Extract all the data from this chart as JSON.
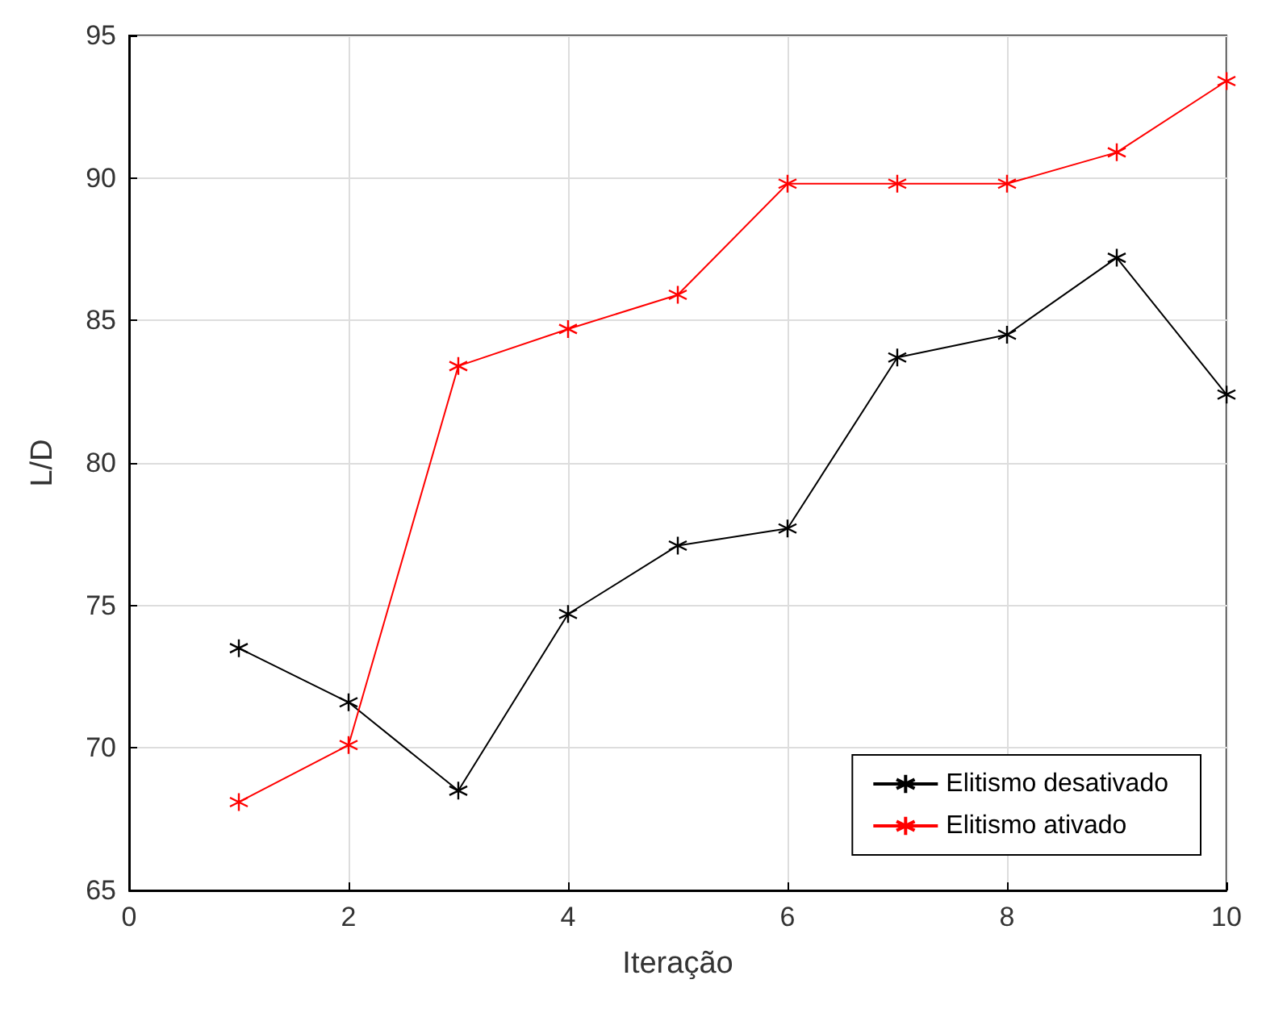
{
  "chart_data": {
    "type": "line",
    "xlabel": "Iteração",
    "ylabel": "L/D",
    "x": [
      1,
      2,
      3,
      4,
      5,
      6,
      7,
      8,
      9,
      10
    ],
    "series": [
      {
        "name": "Elitismo desativado",
        "color": "#000000",
        "values": [
          73.5,
          71.6,
          68.5,
          74.7,
          77.1,
          77.7,
          83.7,
          84.5,
          87.2,
          82.4
        ]
      },
      {
        "name": "Elitismo ativado",
        "color": "#ff0000",
        "values": [
          68.1,
          70.1,
          83.4,
          84.7,
          85.9,
          89.8,
          89.8,
          89.8,
          90.9,
          93.4
        ]
      }
    ],
    "xlim": [
      0,
      10
    ],
    "xticks": [
      0,
      2,
      4,
      6,
      8,
      10
    ],
    "ylim": [
      65,
      95
    ],
    "yticks": [
      65,
      70,
      75,
      80,
      85,
      90,
      95
    ],
    "grid": true,
    "legend": "bottom right",
    "marker": "cross",
    "line_style": "solid"
  }
}
